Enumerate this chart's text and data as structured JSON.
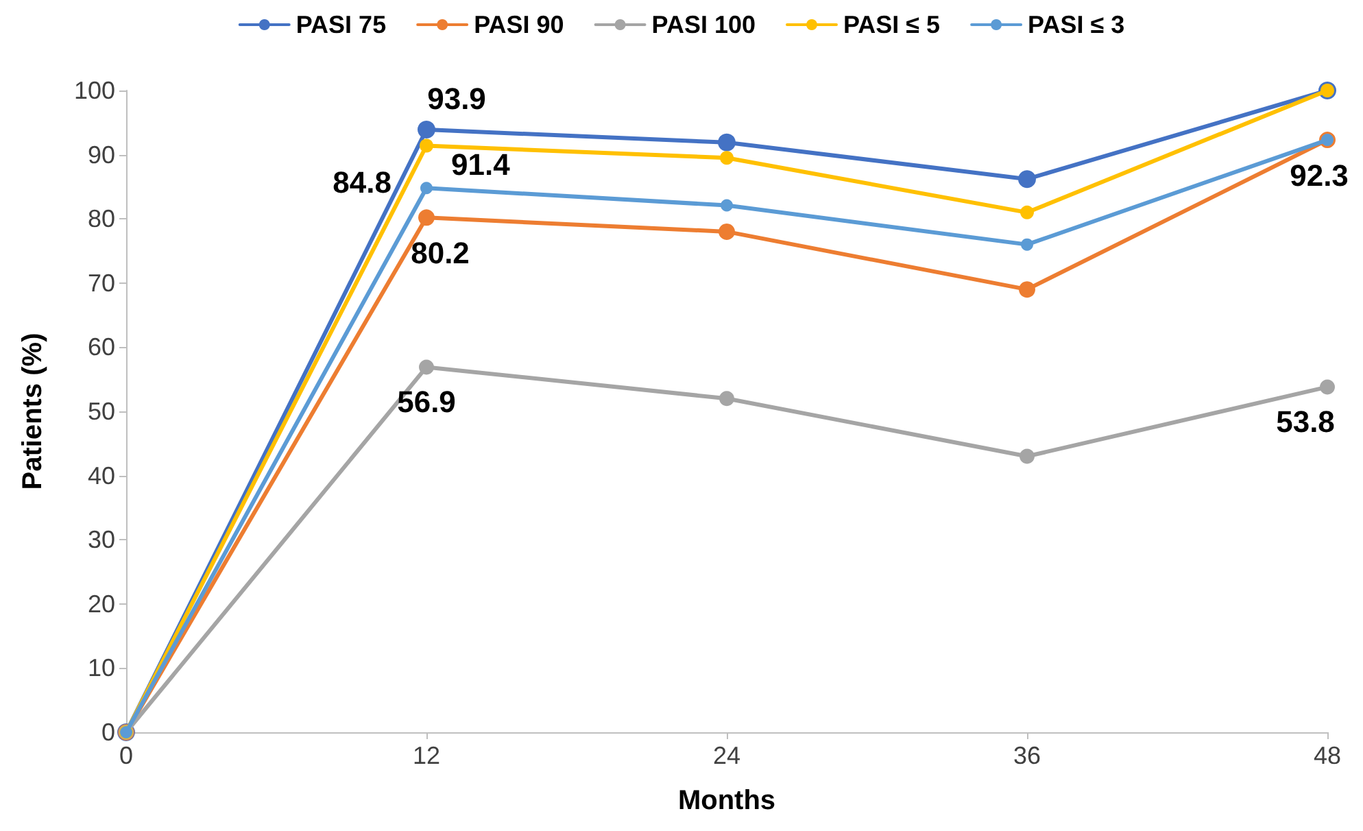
{
  "chart_data": {
    "type": "line",
    "xlabel": "Months",
    "ylabel": "Patients (%)",
    "x": [
      0,
      12,
      24,
      36,
      48
    ],
    "xlim": [
      0,
      48
    ],
    "xticks": [
      0,
      12,
      24,
      36,
      48
    ],
    "ylim": [
      0,
      100
    ],
    "yticks": [
      0,
      10,
      20,
      30,
      40,
      50,
      60,
      70,
      80,
      90,
      100
    ],
    "grid": false,
    "legend": "top",
    "marker": "circle",
    "line_style": "solid",
    "series": [
      {
        "name": "PASI 75",
        "color": "#4472c4",
        "values": [
          0,
          93.9,
          91.9,
          86.2,
          100
        ],
        "value_labels": [
          null,
          "93.9",
          null,
          null,
          null
        ]
      },
      {
        "name": "PASI 90",
        "color": "#ed7d31",
        "values": [
          0,
          80.2,
          78.0,
          69.0,
          92.3
        ],
        "value_labels": [
          null,
          "80.2",
          null,
          null,
          "92.3"
        ]
      },
      {
        "name": "PASI 100",
        "color": "#a5a5a5",
        "values": [
          0,
          56.9,
          52.0,
          43.0,
          53.8
        ],
        "value_labels": [
          null,
          "56.9",
          null,
          null,
          "53.8"
        ]
      },
      {
        "name": "PASI ≤ 5",
        "color": "#ffc000",
        "values": [
          0,
          91.4,
          89.5,
          81.0,
          100
        ],
        "value_labels": [
          null,
          "91.4",
          null,
          null,
          null
        ]
      },
      {
        "name": "PASI ≤ 3",
        "color": "#5b9bd5",
        "values": [
          0,
          84.8,
          82.1,
          76.0,
          92.3
        ],
        "value_labels": [
          null,
          "84.8",
          null,
          null,
          null
        ]
      }
    ]
  }
}
